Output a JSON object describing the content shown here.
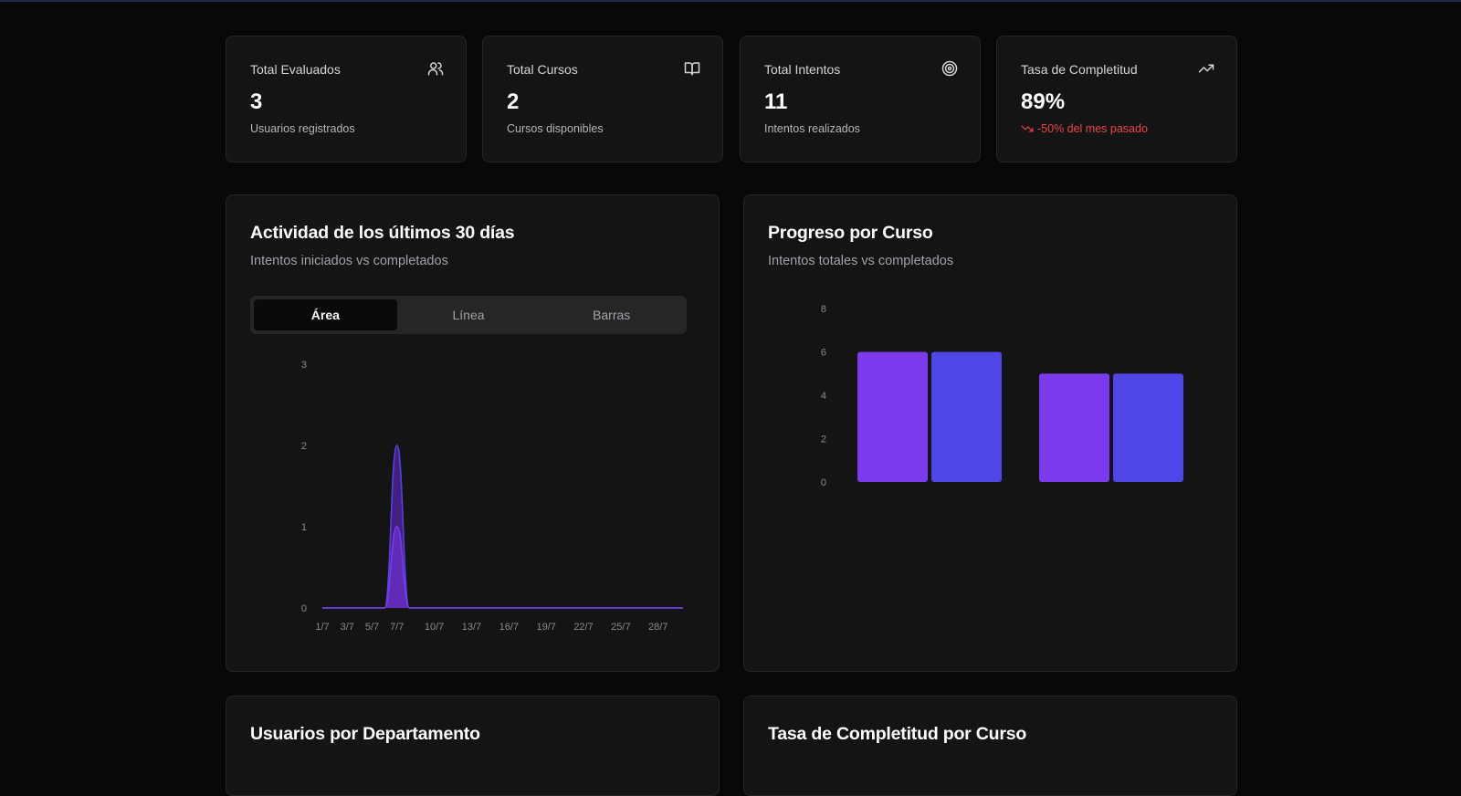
{
  "stats": [
    {
      "title": "Total Evaluados",
      "value": "3",
      "sub": "Usuarios registrados",
      "icon": "users-icon"
    },
    {
      "title": "Total Cursos",
      "value": "2",
      "sub": "Cursos disponibles",
      "icon": "book-open-icon"
    },
    {
      "title": "Total Intentos",
      "value": "11",
      "sub": "Intentos realizados",
      "icon": "target-icon"
    },
    {
      "title": "Tasa de Completitud",
      "value": "89%",
      "sub": "-50% del mes pasado",
      "icon": "trending-up-icon",
      "sub_icon": "trending-down-icon"
    }
  ],
  "activity": {
    "title": "Actividad de los últimos 30 días",
    "subtitle": "Intentos iniciados vs completados",
    "tabs": [
      "Área",
      "Línea",
      "Barras"
    ],
    "active_tab": "Área"
  },
  "progress": {
    "title": "Progreso por Curso",
    "subtitle": "Intentos totales vs completados"
  },
  "departments": {
    "title": "Usuarios por Departamento"
  },
  "completion": {
    "title": "Tasa de Completitud por Curso"
  },
  "colors": {
    "purple": "#7c3aed",
    "indigo": "#4f46e5",
    "area_fill": "#6d28d9",
    "negative": "#ef4444"
  },
  "chart_data": [
    {
      "type": "area",
      "x": [
        "1/7",
        "2/7",
        "3/7",
        "4/7",
        "5/7",
        "6/7",
        "7/7",
        "8/7",
        "9/7",
        "10/7",
        "11/7",
        "12/7",
        "13/7",
        "14/7",
        "15/7",
        "16/7",
        "17/7",
        "18/7",
        "19/7",
        "20/7",
        "21/7",
        "22/7",
        "23/7",
        "24/7",
        "25/7",
        "26/7",
        "27/7",
        "28/7",
        "29/7",
        "30/7"
      ],
      "x_tick_labels": [
        "1/7",
        "3/7",
        "5/7",
        "7/7",
        "10/7",
        "13/7",
        "16/7",
        "19/7",
        "22/7",
        "25/7",
        "28/7"
      ],
      "series": [
        {
          "values": [
            0,
            0,
            0,
            0,
            0,
            0,
            2,
            0,
            0,
            0,
            0,
            0,
            0,
            0,
            0,
            0,
            0,
            0,
            0,
            0,
            0,
            0,
            0,
            0,
            0,
            0,
            0,
            0,
            0,
            0
          ]
        },
        {
          "values": [
            0,
            0,
            0,
            0,
            0,
            0,
            1,
            0,
            0,
            0,
            0,
            0,
            0,
            0,
            0,
            0,
            0,
            0,
            0,
            0,
            0,
            0,
            0,
            0,
            0,
            0,
            0,
            0,
            0,
            0
          ]
        }
      ],
      "y_ticks": [
        0,
        1,
        2,
        3
      ],
      "ylim": [
        0,
        3
      ]
    },
    {
      "type": "bar",
      "groups": 2,
      "series": [
        {
          "values": [
            6,
            5
          ]
        },
        {
          "values": [
            6,
            5
          ]
        }
      ],
      "y_ticks": [
        0,
        2,
        4,
        6,
        8
      ],
      "ylim": [
        0,
        8
      ]
    }
  ]
}
